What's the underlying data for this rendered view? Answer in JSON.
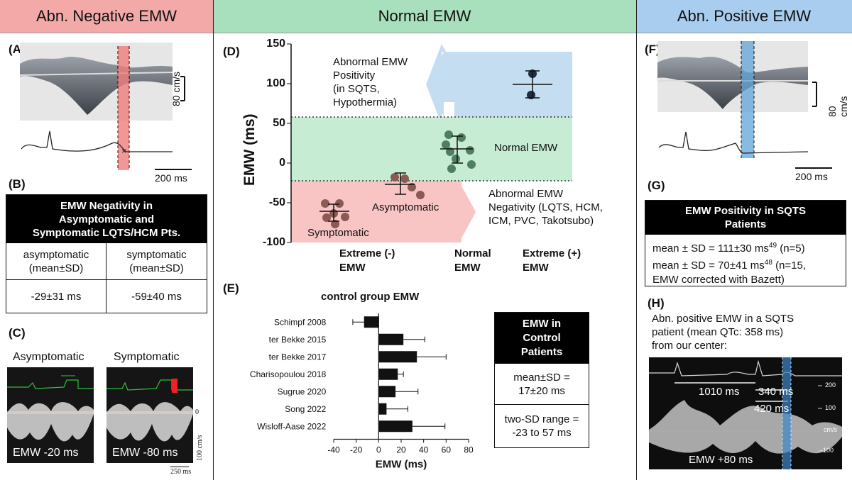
{
  "headers": {
    "left": "Abn. Negative EMW",
    "middle": "Normal EMW",
    "right": "Abn. Positive EMW"
  },
  "colors": {
    "left_header": "#f4a9a9",
    "middle_header": "#a8dfbc",
    "right_header": "#a9cdee",
    "pink_zone": "#f8c4c4",
    "green_zone": "#c6ecd3",
    "blue_zone": "#c5ddf1"
  },
  "panelA": {
    "label": "(A)",
    "scale_velocity": "80 cm/s",
    "scale_time": "200 ms"
  },
  "panelB": {
    "label": "(B)",
    "title_lines": [
      "EMW Negativity in",
      "Asymptomatic and",
      "Symptomatic LQTS/HCM Pts."
    ],
    "col1_header_lines": [
      "asymptomatic",
      "(mean±SD)"
    ],
    "col2_header_lines": [
      "symptomatic",
      "(mean±SD)"
    ],
    "col1_value": "-29±31 ms",
    "col2_value": "-59±40 ms"
  },
  "panelC": {
    "label": "(C)",
    "left_title": "Asymptomatic",
    "right_title": "Symptomatic",
    "left_emw": "EMW -20 ms",
    "right_emw": "EMW -80 ms",
    "zero": "0",
    "vscale": "100 cm/s",
    "hscale": "250 ms"
  },
  "panelD": {
    "label": "(D)",
    "ylabel": "EMW (ms)",
    "yticks": [
      "150",
      "100",
      "50",
      "0",
      "-50",
      "-100"
    ],
    "pos_annotation_lines": [
      "Abnormal EMW",
      "Positivity",
      "(in SQTS,",
      "Hypothermia)"
    ],
    "neg_annotation_lines": [
      "Abnormal EMW",
      "Negativity (LQTS, HCM,",
      "ICM, PVC, Takotsubo)"
    ],
    "normal_label": "Normal EMW",
    "asymptomatic_label": "Asymptomatic",
    "symptomatic_label": "Symptomatic",
    "xcats": [
      [
        "Extreme (-)",
        "EMW"
      ],
      [
        "Normal",
        "EMW"
      ],
      [
        "Extreme (+)",
        "EMW"
      ]
    ]
  },
  "chart_data": {
    "type": "bar",
    "title": "control group EMW",
    "xlabel": "EMW (ms)",
    "ylabel": "",
    "categories": [
      "Schimpf 2008",
      "ter Bekke 2015",
      "ter Bekke 2017",
      "Charisopoulou 2018",
      "Sugrue 2020",
      "Song 2022",
      "Wisloff-Aase 2022"
    ],
    "values": [
      -13,
      22,
      34,
      17,
      15,
      7,
      30
    ],
    "errors": [
      10,
      19,
      26,
      5,
      20,
      19,
      29
    ],
    "xlim": [
      -40,
      80
    ],
    "xticks": [
      "-40",
      "-20",
      "0",
      "20",
      "40",
      "60",
      "80"
    ],
    "orientation": "horizontal"
  },
  "panelE": {
    "label": "(E)",
    "box_title_lines": [
      "EMW in",
      "Control",
      "Patients"
    ],
    "mean_lines": [
      "mean±SD =",
      "17±20 ms"
    ],
    "range_lines": [
      "two-SD range =",
      "-23 to 57 ms"
    ]
  },
  "panelF": {
    "label": "(F)",
    "scale_velocity": "80 cm/s",
    "scale_time": "200 ms"
  },
  "panelG": {
    "label": "(G)",
    "title_lines": [
      "EMW Positivity in SQTS",
      "Patients"
    ],
    "line1_main": "mean ± SD = 111±30 ms",
    "line1_sup": "49",
    "line1_tail": " (n=5)",
    "line2_main": "mean ± SD = 70±41 ms",
    "line2_sup": "48",
    "line2_tail": " (n=15,",
    "line3": "EMW corrected with Bazett)"
  },
  "panelH": {
    "label": "(H)",
    "caption_lines": [
      "Abn. positive EMW in a SQTS",
      "patient (mean QTc: 358 ms)",
      "from our center:"
    ],
    "m1": "1010 ms",
    "m2": "340 ms",
    "m3": "420 ms",
    "emw": "EMW +80 ms",
    "axis": [
      "200",
      "100",
      "cm/s",
      "-100"
    ]
  }
}
